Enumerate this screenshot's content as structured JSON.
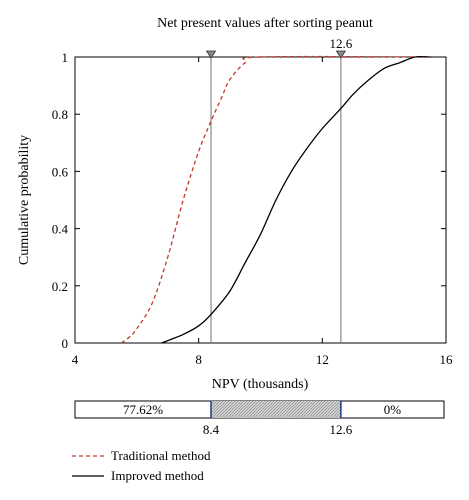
{
  "chart_data": {
    "type": "line",
    "title": "Net present values after sorting peanut",
    "xlabel": "NPV (thousands)",
    "ylabel": "Cumulative probability",
    "xlim": [
      4,
      16
    ],
    "ylim": [
      0,
      1
    ],
    "xticks": [
      "4",
      "8",
      "12",
      "16"
    ],
    "yticks": [
      "0",
      "0.2",
      "0.4",
      "0.6",
      "0.8",
      "1"
    ],
    "grid": false,
    "legend_position": "bottom-left",
    "series": [
      {
        "name": "Traditional method",
        "style": "dashed",
        "color": "#c0392b",
        "points": [
          [
            5.5,
            0.0
          ],
          [
            5.75,
            0.02
          ],
          [
            6.0,
            0.05
          ],
          [
            6.5,
            0.14
          ],
          [
            7.0,
            0.3
          ],
          [
            7.5,
            0.5
          ],
          [
            8.0,
            0.67
          ],
          [
            8.4,
            0.776
          ],
          [
            8.75,
            0.86
          ],
          [
            9.0,
            0.92
          ],
          [
            9.5,
            0.98
          ],
          [
            10.0,
            1.0
          ],
          [
            15.5,
            1.0
          ]
        ]
      },
      {
        "name": "Improved method",
        "style": "solid",
        "color": "#000000",
        "points": [
          [
            6.8,
            0.0
          ],
          [
            7.5,
            0.03
          ],
          [
            8.0,
            0.06
          ],
          [
            8.4,
            0.1
          ],
          [
            9.0,
            0.18
          ],
          [
            9.5,
            0.28
          ],
          [
            10.0,
            0.38
          ],
          [
            10.5,
            0.5
          ],
          [
            11.0,
            0.6
          ],
          [
            11.5,
            0.68
          ],
          [
            12.0,
            0.75
          ],
          [
            12.6,
            0.82
          ],
          [
            13.0,
            0.87
          ],
          [
            13.5,
            0.92
          ],
          [
            14.0,
            0.96
          ],
          [
            14.5,
            0.98
          ],
          [
            15.0,
            1.0
          ],
          [
            15.5,
            1.0
          ]
        ]
      }
    ],
    "markers": [
      {
        "x": 8.4,
        "label": ""
      },
      {
        "x": 12.6,
        "label": "12.6"
      }
    ],
    "probability_bar": {
      "left_label": "77.62%",
      "right_label": "0%",
      "low": "8.4",
      "high": "12.6"
    }
  }
}
